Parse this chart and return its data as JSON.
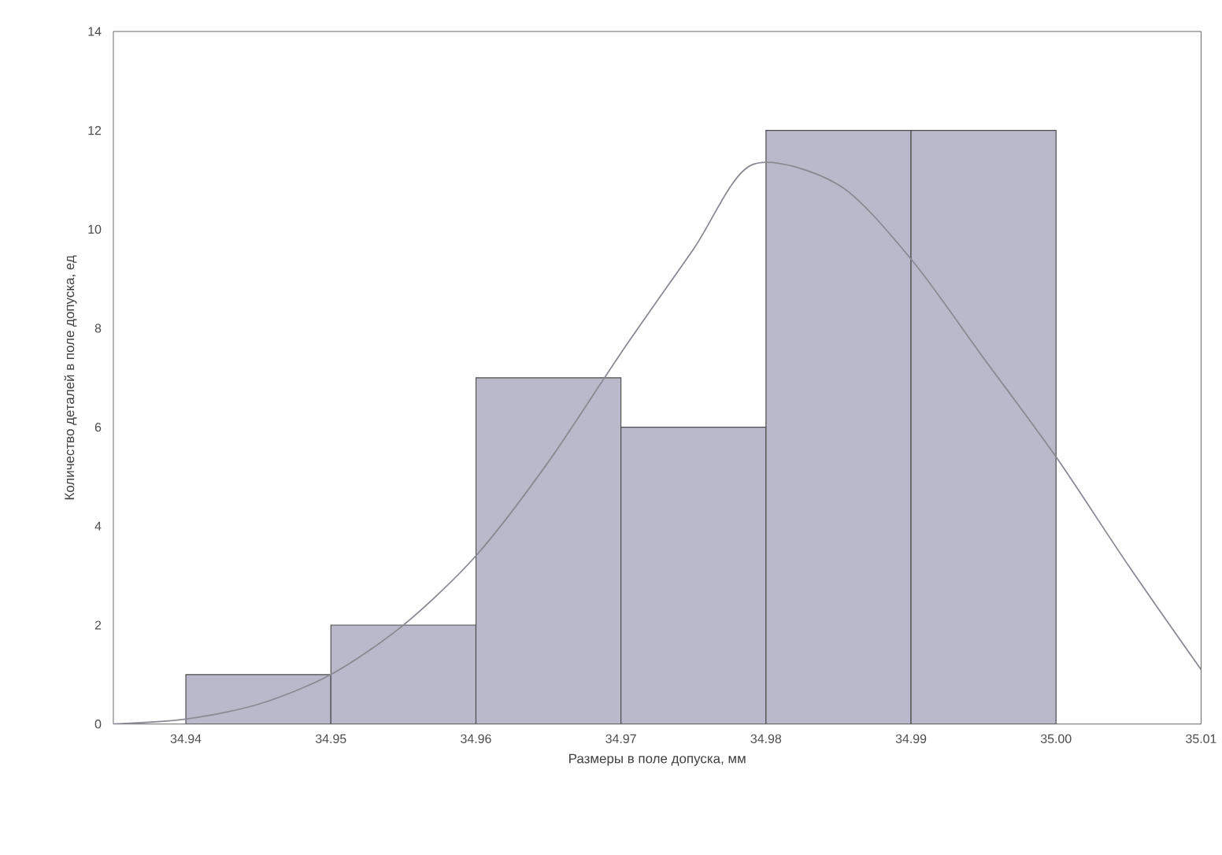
{
  "chart_data": {
    "type": "histogram",
    "xlabel": "Размеры в поле допуска, мм",
    "ylabel": "Количество деталей в поле допуска, ед",
    "bins": [
      34.94,
      34.95,
      34.96,
      34.97,
      34.98,
      34.99,
      35.0
    ],
    "values": [
      1,
      2,
      7,
      6,
      12,
      12
    ],
    "color": "#b9b9cb",
    "series": [
      {
        "type": "line",
        "color": "#8a8a94",
        "x": [
          34.935,
          34.94,
          34.945,
          34.95,
          34.955,
          34.96,
          34.965,
          34.97,
          34.975,
          34.979,
          34.985,
          34.99,
          34.995,
          35.0,
          35.005,
          35.01
        ],
        "values": [
          0.0,
          0.1,
          0.4,
          1.0,
          2.0,
          3.4,
          5.3,
          7.5,
          9.6,
          11.3,
          10.9,
          9.4,
          7.4,
          5.4,
          3.2,
          1.1
        ]
      }
    ],
    "xlim": [
      34.935,
      35.01
    ],
    "ylim": [
      0,
      14
    ],
    "xticks": [
      34.94,
      34.95,
      34.96,
      34.97,
      34.98,
      34.99,
      {
        "value": 35.0,
        "label": "35.00"
      },
      35.01
    ],
    "yticks": [
      0,
      2,
      4,
      6,
      8,
      10,
      12,
      14
    ],
    "grid": false
  }
}
